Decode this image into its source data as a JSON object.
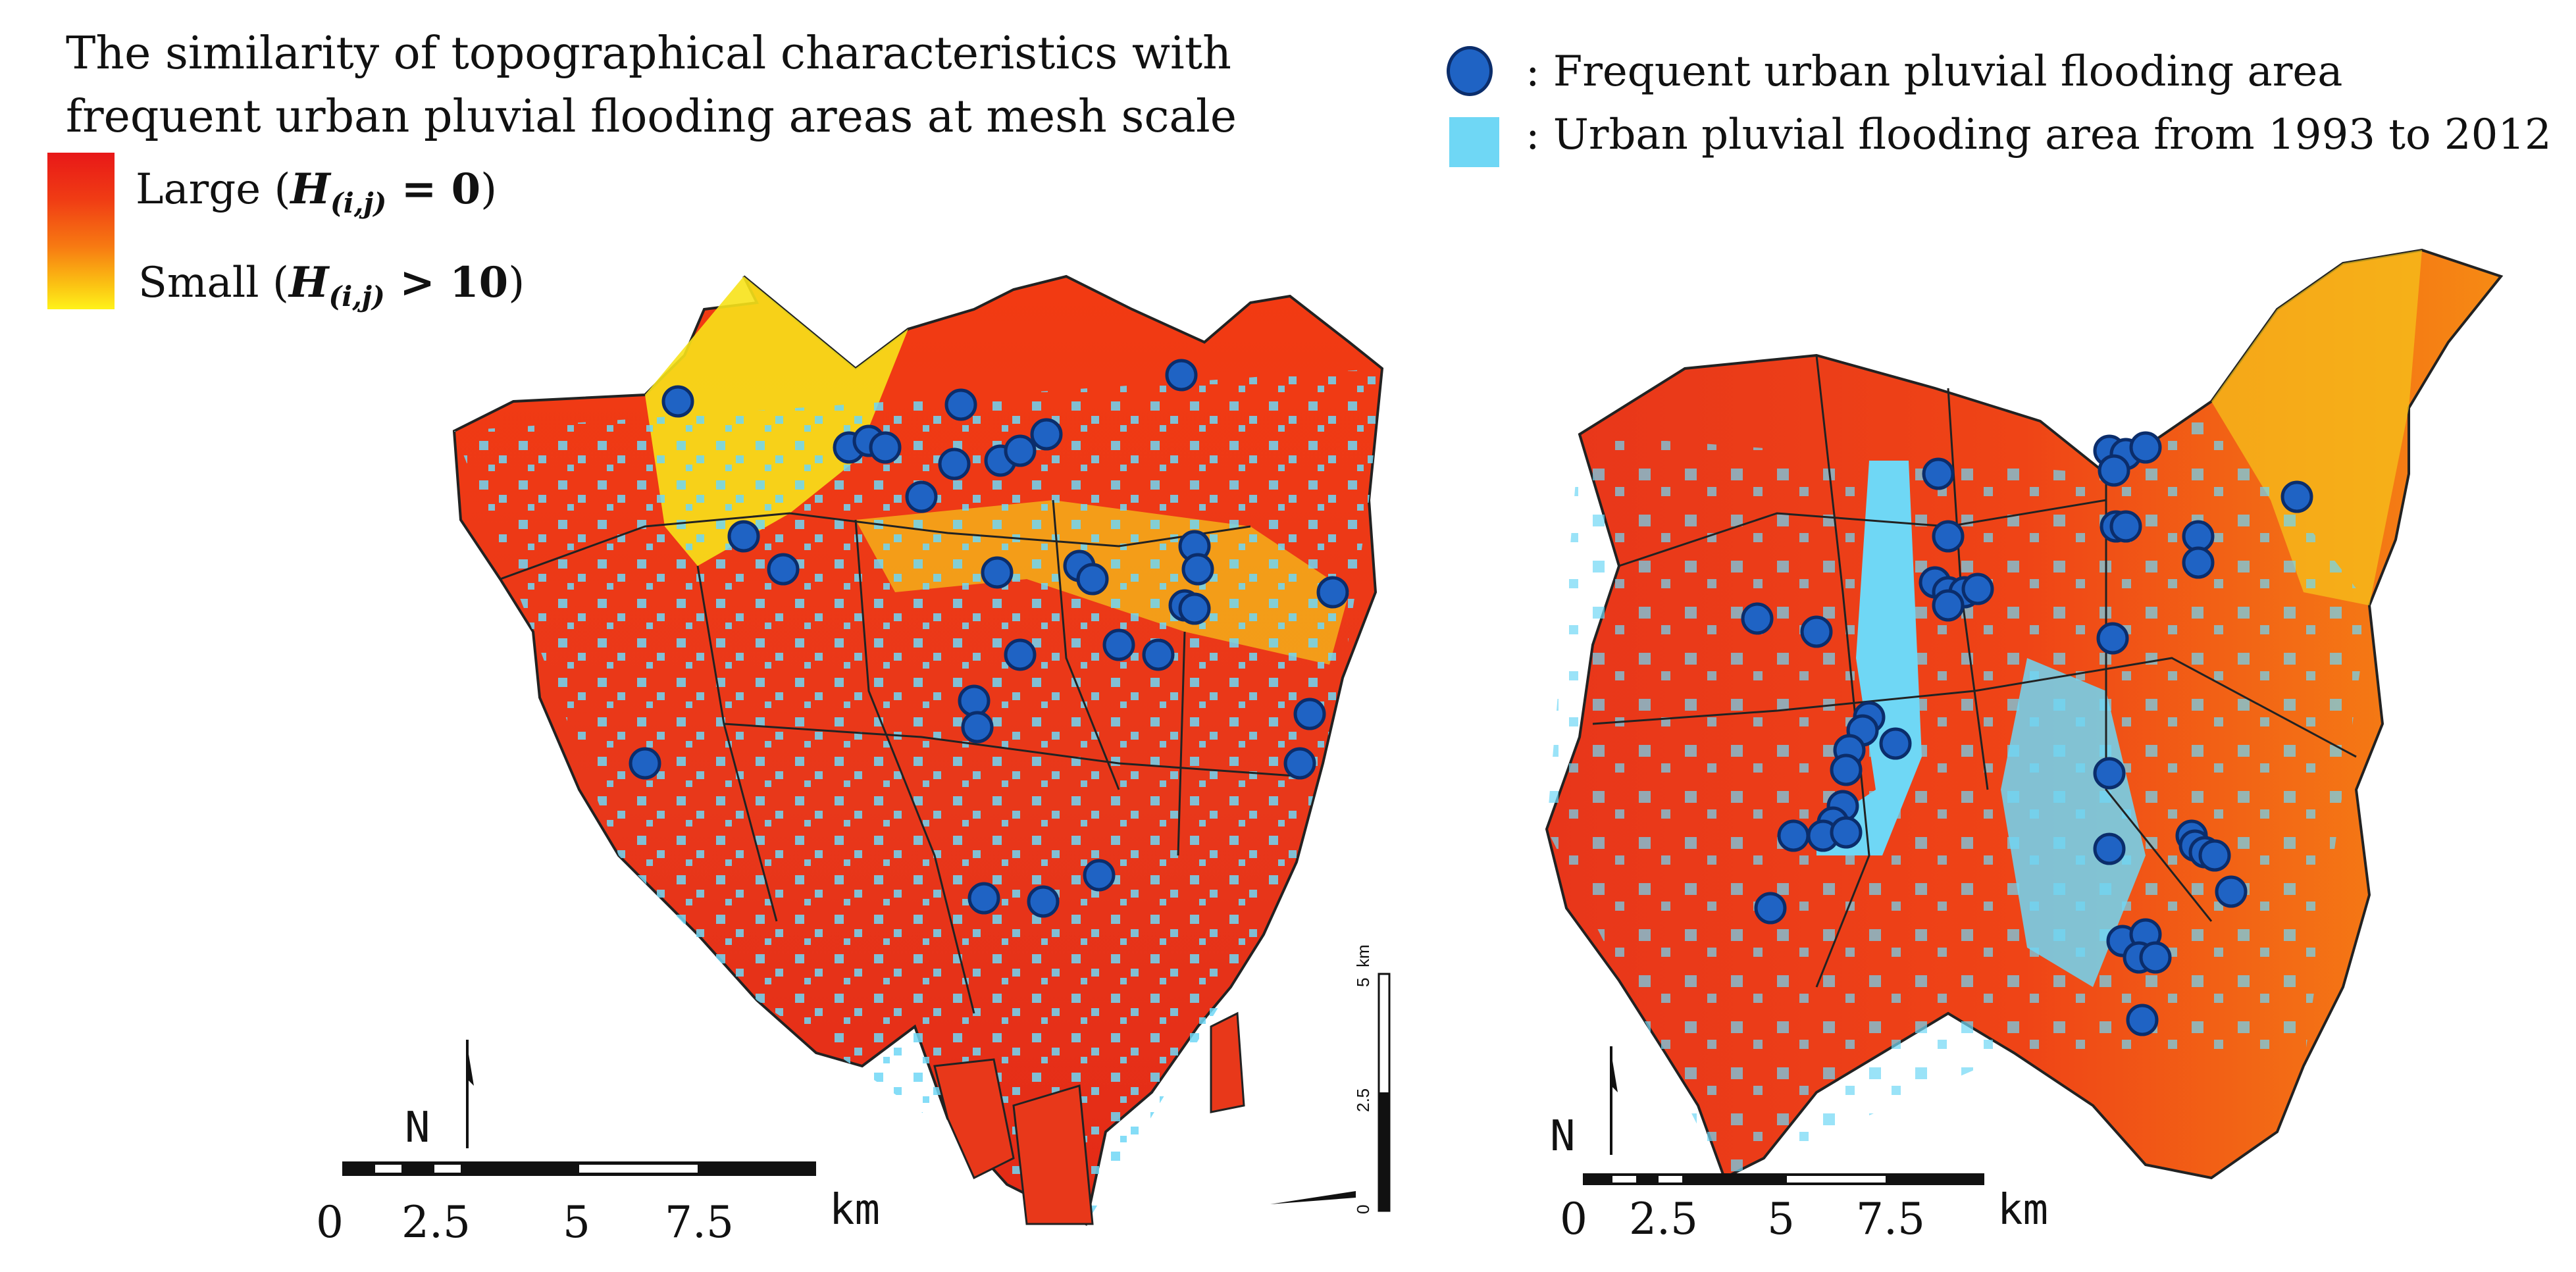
{
  "legend": {
    "title_line1": "The similarity of topographical characteristics with",
    "title_line2": "frequent urban pluvial flooding areas at mesh scale",
    "large_word": "Large (",
    "large_h": "H",
    "large_sub": "(i,j)",
    "large_cond": " = 0",
    "large_close": ")",
    "small_word": "Small (",
    "small_h": "H",
    "small_sub": "(i,j)",
    "small_cond": " > 10",
    "small_close": ")",
    "gradient_colors": [
      "#e81818",
      "#f77a12",
      "#fff21a"
    ],
    "frequent_label": ": Frequent urban pluvial flooding area",
    "area_label": ": Urban pluvial flooding area from 1993 to 2012",
    "dot_color": "#1f63c4",
    "area_color": "#6fd7f5"
  },
  "left_map": {
    "north_label": "N",
    "scale_ticks": [
      "0",
      "2.5",
      "5",
      "7.5"
    ],
    "scale_unit": "km",
    "vertical_scale": {
      "unit": "km",
      "ticks": [
        "0",
        "2.5",
        "5"
      ]
    }
  },
  "right_map": {
    "north_label": "N",
    "scale_ticks": [
      "0",
      "2.5",
      "5",
      "7.5"
    ],
    "scale_unit": "km"
  }
}
